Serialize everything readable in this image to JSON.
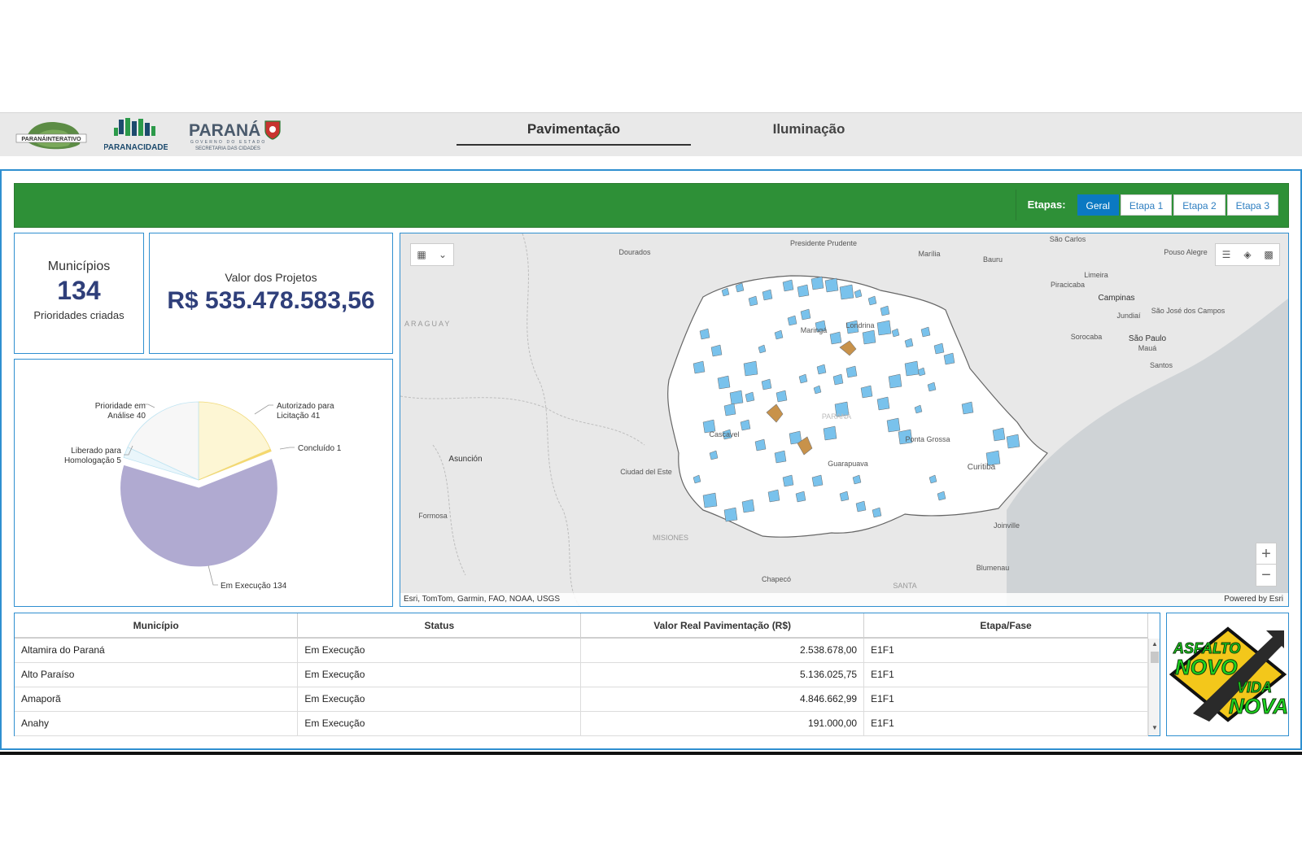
{
  "header": {
    "logos": {
      "parana_interativo": "PARANÁINTERATIVO",
      "parana_cidade": "PARANACIDADE",
      "parana_state": "PARANÁ",
      "parana_state_sub1": "GOVERNO DO ESTADO",
      "parana_state_sub2": "SECRETARIA DAS CIDADES"
    },
    "tabs": [
      {
        "label": "Pavimentação",
        "active": true
      },
      {
        "label": "Iluminação",
        "active": false
      }
    ]
  },
  "filters": {
    "label": "Etapas:",
    "options": [
      "Geral",
      "Etapa 1",
      "Etapa 2",
      "Etapa 3"
    ],
    "selected": "Geral"
  },
  "stats": {
    "municipios_title": "Municípios",
    "municipios_value": "134",
    "municipios_sub": "Prioridades criadas",
    "valor_title": "Valor dos Projetos",
    "valor_value": "R$ 535.478.583,56"
  },
  "chart_data": {
    "type": "pie",
    "slices": [
      {
        "label": "Autorizado para Licitação",
        "value": 41,
        "color": "#fdf6d4"
      },
      {
        "label": "Concluído",
        "value": 1,
        "color": "#f7d86a"
      },
      {
        "label": "Em Execução",
        "value": 134,
        "color": "#b0aad1"
      },
      {
        "label": "Liberado para Homologação",
        "value": 5,
        "color": "#eaf6fb"
      },
      {
        "label": "Prioridade em Análise",
        "value": 40,
        "color": "#f7f7f7"
      }
    ],
    "labels": {
      "autorizado": [
        "Autorizado para",
        "Licitação 41"
      ],
      "concluido": [
        "Concluído 1"
      ],
      "execucao": [
        "Em Execução 134"
      ],
      "liberado": [
        "Liberado para",
        "Homologação 5"
      ],
      "analise": [
        "Prioridade em",
        "Análise 40"
      ]
    }
  },
  "map": {
    "places": [
      "Presidente Prudente",
      "Dourados",
      "Marília",
      "Bauru",
      "São Carlos",
      "Pouso Alegre",
      "Limeira",
      "Piracicaba",
      "Campinas",
      "Jundiaí",
      "São José dos Campos",
      "Sorocaba",
      "São Paulo",
      "Mauá",
      "Santos",
      "Londrina",
      "Maringá",
      "PARANÁ",
      "Cascavel",
      "Ponta Grossa",
      "Guarapuava",
      "Curitiba",
      "Joinville",
      "Blumenau",
      "Chapecó",
      "Asunción",
      "Ciudad del Este",
      "Formosa",
      "MISIONES",
      "ARAGUAY",
      "SANTA"
    ],
    "attribution": "Esri, TomTom, Garmin, FAO, NOAA, USGS",
    "powered_by": "Powered by Esri",
    "colors": {
      "land": "#e7e7e7",
      "water": "#cfd3d6",
      "state": "#ffffff",
      "highlight": "#79c2ec",
      "selected": "#c8924a"
    }
  },
  "table": {
    "columns": [
      "Município",
      "Status",
      "Valor Real Pavimentação (R$)",
      "Etapa/Fase"
    ],
    "rows": [
      [
        "Altamira do Paraná",
        "Em Execução",
        "2.538.678,00",
        "E1F1"
      ],
      [
        "Alto Paraíso",
        "Em Execução",
        "5.136.025,75",
        "E1F1"
      ],
      [
        "Amaporã",
        "Em Execução",
        "4.846.662,99",
        "E1F1"
      ],
      [
        "Anahy",
        "Em Execução",
        "191.000,00",
        "E1F1"
      ]
    ]
  },
  "brand": {
    "line1": "ASFALTO",
    "line2": "NOVO",
    "line3": "VIDA",
    "line4": "NOVA"
  }
}
